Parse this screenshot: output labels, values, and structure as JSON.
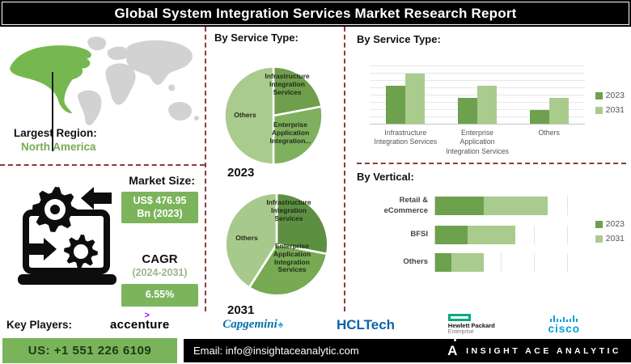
{
  "banner": {
    "title": "Global System Integration Services Market Research Report"
  },
  "region": {
    "label": "Largest Region:",
    "value": "North America"
  },
  "market": {
    "size_label": "Market Size:",
    "size_value": "US$ 476.95\nBn (2023)",
    "cagr_label": "CAGR",
    "cagr_period": "(2024-2031)",
    "cagr_value": "6.55%"
  },
  "colors": {
    "green_dark": "#649748",
    "green_mid": "#7dae58",
    "green_light": "#a9cb8e",
    "badge_green": "#7cb45c",
    "map_highlight": "#76b84f",
    "map_base": "#d2d2d2",
    "divider": "#8e3b3b"
  },
  "chart_data": [
    {
      "type": "pie",
      "title": "By Service Type:",
      "year": "2023",
      "labels": [
        "Infrastructure Integration Services",
        "Enterprise Application Integration...",
        "Others"
      ],
      "slice_labels": [
        "Infrastructure\nIntegration\nServices",
        "Enterprise\nApplication\nIntegration...",
        "Others"
      ],
      "values": [
        22,
        28,
        50
      ],
      "colors": [
        "#6f9e4d",
        "#7fb05e",
        "#a9cb8e"
      ]
    },
    {
      "type": "pie",
      "title": "By Service Type:",
      "year": "2031",
      "labels": [
        "Infrastructure Integration Services",
        "Enterprise Application Integration Services",
        "Others"
      ],
      "slice_labels": [
        "Infrastructure\nIntegration\nServices",
        "Enterprise\nApplication\nIntegration\nServices",
        "Others"
      ],
      "values": [
        28,
        31,
        41
      ],
      "colors": [
        "#5d8f41",
        "#77aa52",
        "#a7ca8c"
      ]
    },
    {
      "type": "bar",
      "title": "By Service Type:",
      "categories": [
        "Infrastructure\nIntegration Services",
        "Enterprise\nApplication\nIntegration Services",
        "Others"
      ],
      "series": [
        {
          "name": "2023",
          "color": "#6da14e",
          "values": [
            61,
            42,
            22
          ]
        },
        {
          "name": "2031",
          "color": "#a9cb8e",
          "values": [
            81,
            61,
            42
          ]
        }
      ],
      "ylim": [
        0,
        100
      ],
      "grid": true,
      "legend_position": "right"
    },
    {
      "type": "stacked-hbar",
      "title": "By Vertical:",
      "categories": [
        "Retail &\neCommerce",
        "BFSI",
        "Others"
      ],
      "series": [
        {
          "name": "2023",
          "color": "#6da14e",
          "values": [
            1.5,
            1.0,
            0.5
          ]
        },
        {
          "name": "2031",
          "color": "#a9cb8e",
          "values": [
            2.0,
            1.5,
            1.0
          ]
        }
      ],
      "xlim": [
        0,
        4.3
      ],
      "grid": true,
      "legend_position": "right"
    }
  ],
  "key_players": {
    "label": "Key Players:",
    "logos": {
      "accenture": "accenture",
      "capgemini": "Capgemini",
      "hcltech": "HCLTech",
      "hpe_line1": "Hewlett Packard",
      "hpe_line2": "Enterprise",
      "cisco": "cisco"
    }
  },
  "footer": {
    "phone": "US: +1 551 226 6109",
    "email": "Email: info@insightaceanalytic.com",
    "brand": "INSIGHT ACE ANALYTIC"
  }
}
